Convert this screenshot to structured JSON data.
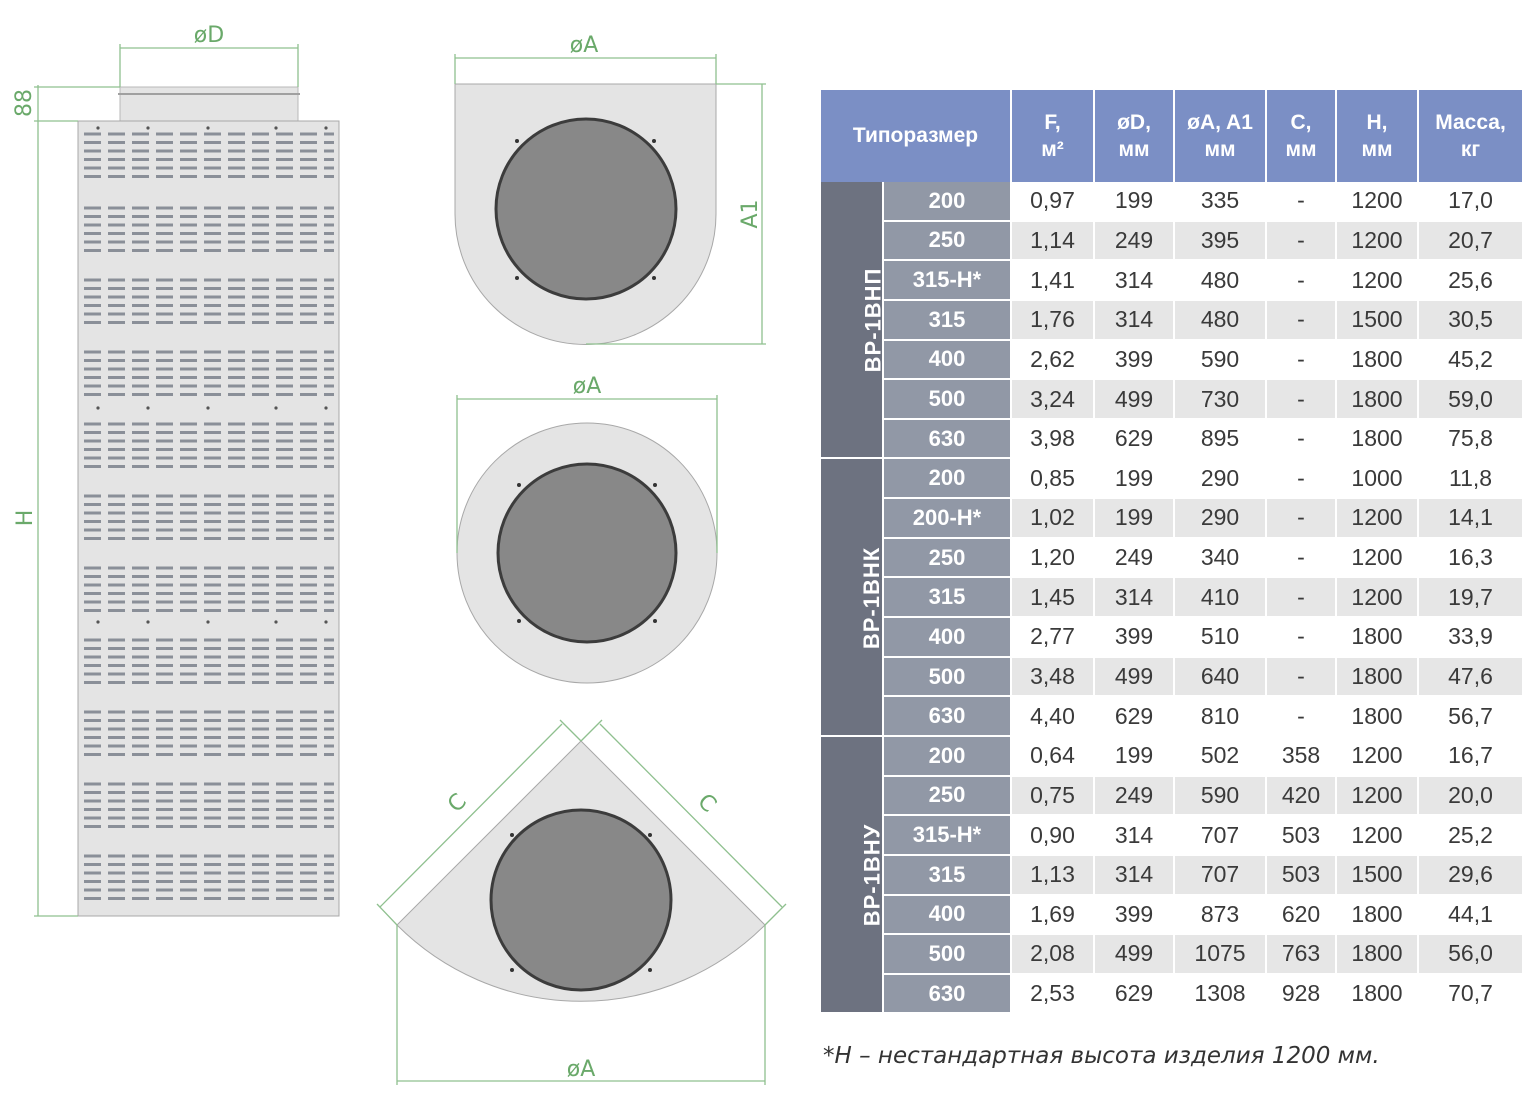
{
  "drawings": {
    "front_view": {
      "width_label": "øD",
      "height_label": "H",
      "socket_label": "88"
    },
    "top_view_semicircle": {
      "width_label": "øA",
      "depth_label": "A1"
    },
    "top_view_circle": {
      "width_label": "øA"
    },
    "top_view_corner": {
      "side_left_label": "C",
      "side_right_label": "C",
      "width_label": "øA"
    }
  },
  "table": {
    "headers": {
      "size": "Типоразмер",
      "f": [
        "F,",
        "м²"
      ],
      "d": [
        "øD,",
        "мм"
      ],
      "a": [
        "øA, A1",
        "мм"
      ],
      "c": [
        "C,",
        "мм"
      ],
      "h": [
        "H,",
        "мм"
      ],
      "mass": [
        "Масса,",
        "кг"
      ]
    },
    "groups": [
      {
        "name": "ВР-1ВНП",
        "rows": [
          {
            "size": "200",
            "f": "0,97",
            "d": "199",
            "a": "335",
            "c": "-",
            "h": "1200",
            "mass": "17,0"
          },
          {
            "size": "250",
            "f": "1,14",
            "d": "249",
            "a": "395",
            "c": "-",
            "h": "1200",
            "mass": "20,7"
          },
          {
            "size": "315-Н*",
            "f": "1,41",
            "d": "314",
            "a": "480",
            "c": "-",
            "h": "1200",
            "mass": "25,6"
          },
          {
            "size": "315",
            "f": "1,76",
            "d": "314",
            "a": "480",
            "c": "-",
            "h": "1500",
            "mass": "30,5"
          },
          {
            "size": "400",
            "f": "2,62",
            "d": "399",
            "a": "590",
            "c": "-",
            "h": "1800",
            "mass": "45,2"
          },
          {
            "size": "500",
            "f": "3,24",
            "d": "499",
            "a": "730",
            "c": "-",
            "h": "1800",
            "mass": "59,0"
          },
          {
            "size": "630",
            "f": "3,98",
            "d": "629",
            "a": "895",
            "c": "-",
            "h": "1800",
            "mass": "75,8"
          }
        ]
      },
      {
        "name": "ВР-1ВНК",
        "rows": [
          {
            "size": "200",
            "f": "0,85",
            "d": "199",
            "a": "290",
            "c": "-",
            "h": "1000",
            "mass": "11,8"
          },
          {
            "size": "200-Н*",
            "f": "1,02",
            "d": "199",
            "a": "290",
            "c": "-",
            "h": "1200",
            "mass": "14,1"
          },
          {
            "size": "250",
            "f": "1,20",
            "d": "249",
            "a": "340",
            "c": "-",
            "h": "1200",
            "mass": "16,3"
          },
          {
            "size": "315",
            "f": "1,45",
            "d": "314",
            "a": "410",
            "c": "-",
            "h": "1200",
            "mass": "19,7"
          },
          {
            "size": "400",
            "f": "2,77",
            "d": "399",
            "a": "510",
            "c": "-",
            "h": "1800",
            "mass": "33,9"
          },
          {
            "size": "500",
            "f": "3,48",
            "d": "499",
            "a": "640",
            "c": "-",
            "h": "1800",
            "mass": "47,6"
          },
          {
            "size": "630",
            "f": "4,40",
            "d": "629",
            "a": "810",
            "c": "-",
            "h": "1800",
            "mass": "56,7"
          }
        ]
      },
      {
        "name": "ВР-1ВНУ",
        "rows": [
          {
            "size": "200",
            "f": "0,64",
            "d": "199",
            "a": "502",
            "c": "358",
            "h": "1200",
            "mass": "16,7"
          },
          {
            "size": "250",
            "f": "0,75",
            "d": "249",
            "a": "590",
            "c": "420",
            "h": "1200",
            "mass": "20,0"
          },
          {
            "size": "315-Н*",
            "f": "0,90",
            "d": "314",
            "a": "707",
            "c": "503",
            "h": "1200",
            "mass": "25,2"
          },
          {
            "size": "315",
            "f": "1,13",
            "d": "314",
            "a": "707",
            "c": "503",
            "h": "1500",
            "mass": "29,6"
          },
          {
            "size": "400",
            "f": "1,69",
            "d": "399",
            "a": "873",
            "c": "620",
            "h": "1800",
            "mass": "44,1"
          },
          {
            "size": "500",
            "f": "2,08",
            "d": "499",
            "a": "1075",
            "c": "763",
            "h": "1800",
            "mass": "56,0"
          },
          {
            "size": "630",
            "f": "2,53",
            "d": "629",
            "a": "1308",
            "c": "928",
            "h": "1800",
            "mass": "70,7"
          }
        ]
      }
    ]
  },
  "footnote": "*Н – нестандартная высота изделия 1200 мм.",
  "colors": {
    "header": "#7b8fc5",
    "group_cell": "#6d7280",
    "size_cell": "#9198a6",
    "row_alt": "#e6e6e6",
    "dimension": "#8fc08f",
    "part_fill": "#e4e4e4",
    "opening_fill": "#888888"
  }
}
